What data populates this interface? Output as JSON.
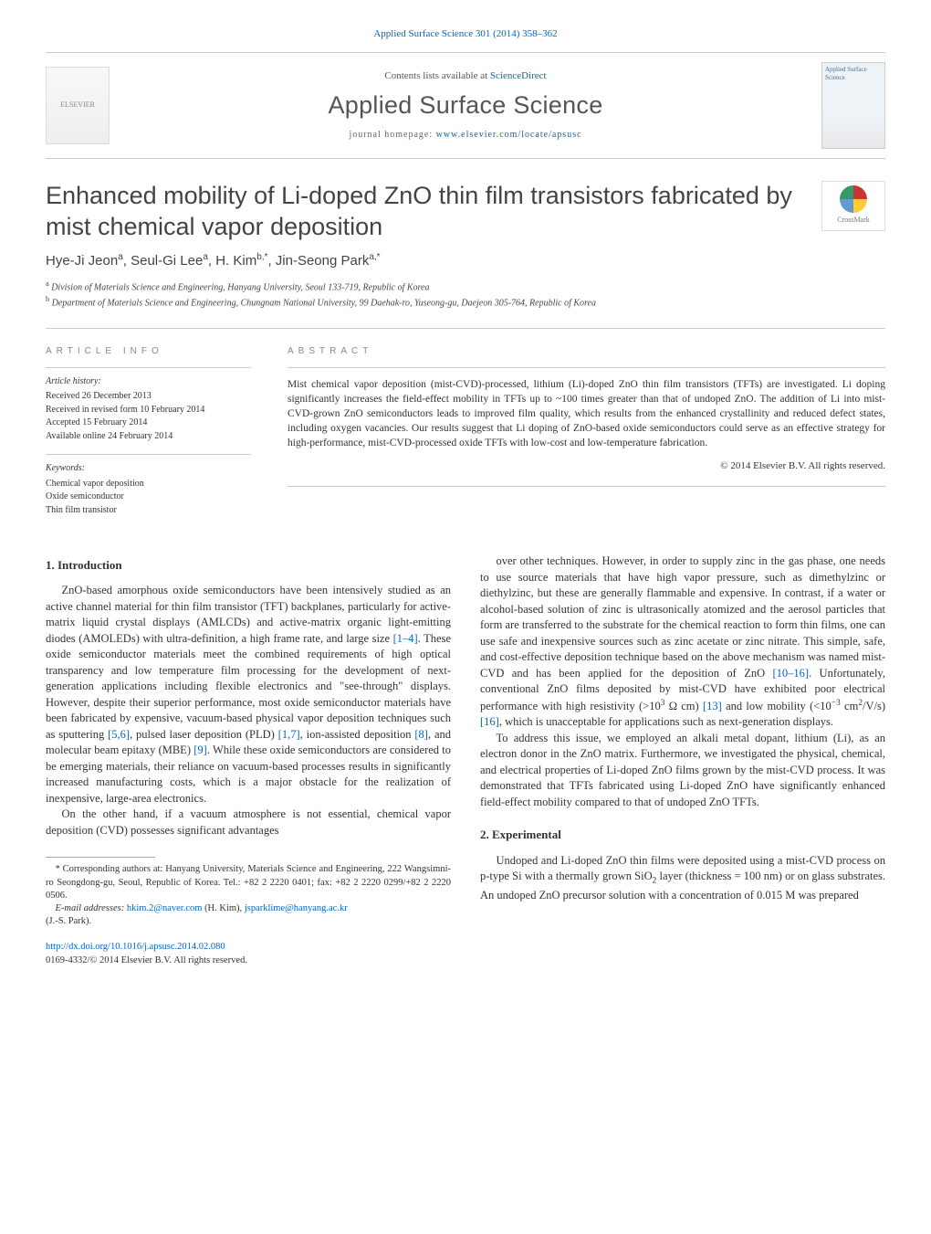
{
  "top_citation": "Applied Surface Science 301 (2014) 358–362",
  "header": {
    "contents_prefix": "Contents lists available at ",
    "contents_link": "ScienceDirect",
    "journal": "Applied Surface Science",
    "homepage_prefix": "journal homepage: ",
    "homepage_url": "www.elsevier.com/locate/apsusc",
    "elsevier_label": "ELSEVIER",
    "cover_label": "Applied Surface Science"
  },
  "title": "Enhanced mobility of Li-doped ZnO thin film transistors fabricated by mist chemical vapor deposition",
  "crossmark_label": "CrossMark",
  "authors_html": "Hye-Ji Jeon<sup>a</sup>, Seul-Gi Lee<sup>a</sup>, H. Kim<sup>b,*</sup>, Jin-Seong Park<sup>a,*</sup>",
  "affiliations": [
    {
      "sup": "a",
      "text": "Division of Materials Science and Engineering, Hanyang University, Seoul 133-719, Republic of Korea"
    },
    {
      "sup": "b",
      "text": "Department of Materials Science and Engineering, Chungnam National University, 99 Daehak-ro, Yuseong-gu, Daejeon 305-764, Republic of Korea"
    }
  ],
  "article_info": {
    "heading": "article info",
    "history_label": "Article history:",
    "history": [
      "Received 26 December 2013",
      "Received in revised form 10 February 2014",
      "Accepted 15 February 2014",
      "Available online 24 February 2014"
    ],
    "keywords_label": "Keywords:",
    "keywords": [
      "Chemical vapor deposition",
      "Oxide semiconductor",
      "Thin film transistor"
    ]
  },
  "abstract": {
    "heading": "abstract",
    "text": "Mist chemical vapor deposition (mist-CVD)-processed, lithium (Li)-doped ZnO thin film transistors (TFTs) are investigated. Li doping significantly increases the field-effect mobility in TFTs up to ~100 times greater than that of undoped ZnO. The addition of Li into mist-CVD-grown ZnO semiconductors leads to improved film quality, which results from the enhanced crystallinity and reduced defect states, including oxygen vacancies. Our results suggest that Li doping of ZnO-based oxide semiconductors could serve as an effective strategy for high-performance, mist-CVD-processed oxide TFTs with low-cost and low-temperature fabrication.",
    "copyright": "© 2014 Elsevier B.V. All rights reserved."
  },
  "sections": {
    "intro_head": "1. Introduction",
    "exp_head": "2. Experimental"
  },
  "body": {
    "p1a": "ZnO-based amorphous oxide semiconductors have been intensively studied as an active channel material for thin film transistor (TFT) backplanes, particularly for active-matrix liquid crystal displays (AMLCDs) and active-matrix organic light-emitting diodes (AMOLEDs) with ultra-definition, a high frame rate, and large size ",
    "p1b": ". These oxide semiconductor materials meet the combined requirements of high optical transparency and low temperature film processing for the development of next-generation applications including flexible electronics and \"see-through\" displays. However, despite their superior performance, most oxide semiconductor materials have been fabricated by expensive, vacuum-based physical vapor deposition techniques such as sputtering ",
    "p1c": ", pulsed laser deposition (PLD) ",
    "p1d": ", ion-assisted deposition ",
    "p1e": ", and molecular beam epitaxy (MBE) ",
    "p1f": ". While these oxide semiconductors are considered to be emerging materials, their reliance on vacuum-based processes results in significantly increased manufacturing costs, which is a major obstacle for the realization of inexpensive, large-area electronics.",
    "p2": "On the other hand, if a vacuum atmosphere is not essential, chemical vapor deposition (CVD) possesses significant advantages",
    "p3a": "over other techniques. However, in order to supply zinc in the gas phase, one needs to use source materials that have high vapor pressure, such as dimethylzinc or diethylzinc, but these are generally flammable and expensive. In contrast, if a water or alcohol-based solution of zinc is ultrasonically atomized and the aerosol particles that form are transferred to the substrate for the chemical reaction to form thin films, one can use safe and inexpensive sources such as zinc acetate or zinc nitrate. This simple, safe, and cost-effective deposition technique based on the above mechanism was named mist-CVD and has been applied for the deposition of ZnO ",
    "p3b": ". Unfortunately, conventional ZnO films deposited by mist-CVD have exhibited poor electrical performance with high resistivity (>10",
    "p3c": " Ω cm) ",
    "p3d": " and low mobility (<10",
    "p3e": " cm",
    "p3f": "/V/s) ",
    "p3g": ", which is unacceptable for applications such as next-generation displays.",
    "p4": "To address this issue, we employed an alkali metal dopant, lithium (Li), as an electron donor in the ZnO matrix. Furthermore, we investigated the physical, chemical, and electrical properties of Li-doped ZnO films grown by the mist-CVD process. It was demonstrated that TFTs fabricated using Li-doped ZnO have significantly enhanced field-effect mobility compared to that of undoped ZnO TFTs.",
    "p5a": "Undoped and Li-doped ZnO thin films were deposited using a mist-CVD process on p-type Si with a thermally grown SiO",
    "p5b": " layer (thickness = 100 nm) or on glass substrates. An undoped ZnO precursor solution with a concentration of 0.015 M was prepared"
  },
  "refs": {
    "r1_4": "[1–4]",
    "r5_6": "[5,6]",
    "r1_7": "[1,7]",
    "r8": "[8]",
    "r9": "[9]",
    "r10_16": "[10–16]",
    "r13": "[13]",
    "r16": "[16]"
  },
  "exponents": {
    "three": "3",
    "minus3": "−3",
    "two": "2"
  },
  "footnotes": {
    "corr": "* Corresponding authors at: Hanyang University, Materials Science and Engineering, 222 Wangsimni-ro Seongdong-gu, Seoul, Republic of Korea.",
    "tel": "Tel.: +82 2 2220 0401; fax: +82 2 2220 0299/+82 2 2220 0506.",
    "email_label": "E-mail addresses: ",
    "email1": "hkim.2@naver.com",
    "email1_who": " (H. Kim), ",
    "email2": "jsparklime@hanyang.ac.kr",
    "email2_who": " (J.-S. Park)."
  },
  "doi": {
    "url": "http://dx.doi.org/10.1016/j.apsusc.2014.02.080",
    "line2": "0169-4332/© 2014 Elsevier B.V. All rights reserved."
  },
  "colors": {
    "link": "#0066cc",
    "text": "#333333",
    "muted": "#888888",
    "rule": "#cccccc"
  }
}
